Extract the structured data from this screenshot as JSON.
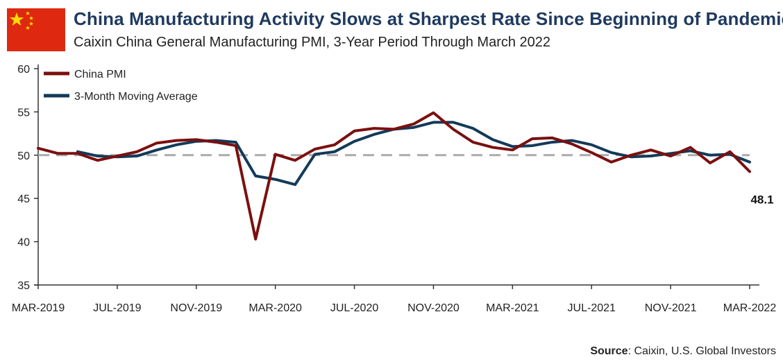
{
  "header": {
    "title": "China Manufacturing Activity Slows at Sharpest Rate Since Beginning of Pandemic",
    "subtitle": "Caixin China General Manufacturing PMI, 3-Year Period Through March 2022"
  },
  "footer": {
    "source_label": "Source",
    "source_text": ": Caixin, U.S. Global Investors"
  },
  "chart_data": {
    "type": "line",
    "x": [
      "MAR-2019",
      "APR-2019",
      "MAY-2019",
      "JUN-2019",
      "JUL-2019",
      "AUG-2019",
      "SEP-2019",
      "OCT-2019",
      "NOV-2019",
      "DEC-2019",
      "JAN-2020",
      "FEB-2020",
      "MAR-2020",
      "APR-2020",
      "MAY-2020",
      "JUN-2020",
      "JUL-2020",
      "AUG-2020",
      "SEP-2020",
      "OCT-2020",
      "NOV-2020",
      "DEC-2020",
      "JAN-2021",
      "FEB-2021",
      "MAR-2021",
      "APR-2021",
      "MAY-2021",
      "JUN-2021",
      "JUL-2021",
      "AUG-2021",
      "SEP-2021",
      "OCT-2021",
      "NOV-2021",
      "DEC-2021",
      "JAN-2022",
      "FEB-2022",
      "MAR-2022"
    ],
    "tick_labels": [
      "MAR-2019",
      "JUL-2019",
      "NOV-2019",
      "MAR-2020",
      "JUL-2020",
      "NOV-2020",
      "MAR-2021",
      "JUL-2021",
      "NOV-2021",
      "MAR-2022"
    ],
    "series": [
      {
        "name": "China PMI",
        "color": "#7b0f0f",
        "values": [
          50.8,
          50.2,
          50.2,
          49.4,
          49.9,
          50.4,
          51.4,
          51.7,
          51.8,
          51.5,
          51.1,
          40.3,
          50.1,
          49.4,
          50.7,
          51.2,
          52.8,
          53.1,
          53.0,
          53.6,
          54.9,
          53.0,
          51.5,
          50.9,
          50.6,
          51.9,
          52.0,
          51.3,
          50.3,
          49.2,
          50.0,
          50.6,
          49.9,
          50.9,
          49.1,
          50.4,
          48.1
        ]
      },
      {
        "name": "3-Month Moving Average",
        "color": "#133a59",
        "values": [
          null,
          null,
          50.4,
          49.9,
          49.8,
          49.9,
          50.6,
          51.2,
          51.6,
          51.7,
          51.5,
          47.6,
          47.2,
          46.6,
          50.1,
          50.4,
          51.6,
          52.4,
          53.0,
          53.2,
          53.8,
          53.8,
          53.1,
          51.8,
          51.0,
          51.1,
          51.5,
          51.7,
          51.2,
          50.3,
          49.8,
          49.9,
          50.2,
          50.5,
          50.0,
          50.1,
          49.2
        ]
      }
    ],
    "reference_line": {
      "value": 50,
      "style": "dashed",
      "color": "#aaaaaa"
    },
    "ylim": [
      35,
      60
    ],
    "yticks": [
      35,
      40,
      45,
      50,
      55,
      60
    ],
    "annotations": [
      {
        "text": "48.1"
      }
    ],
    "legend": "top-left",
    "grid": false
  }
}
